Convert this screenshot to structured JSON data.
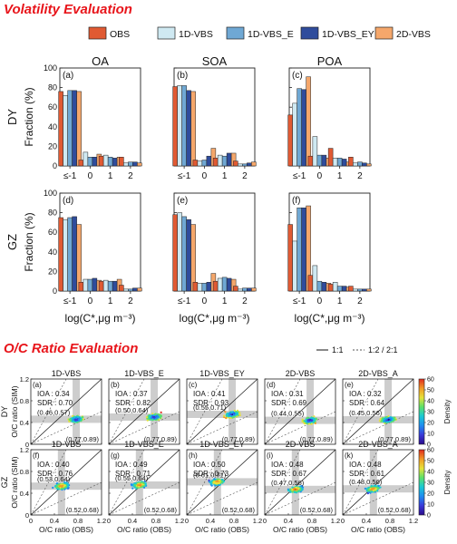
{
  "section1_title": "Volatility Evaluation",
  "section2_title": "O/C Ratio Evaluation",
  "colors": {
    "title_red": "#e8151b",
    "OBS": "#e05a33",
    "1D-VBS": "#cfe9f2",
    "1D-VBS_E": "#6fa8d4",
    "1D-VBS_EY": "#2f4c9c",
    "2D-VBS": "#f5a76b",
    "shade": "#c8c8c8"
  },
  "volatility_legend": [
    "OBS",
    "1D-VBS",
    "1D-VBS_E",
    "1D-VBS_EY",
    "2D-VBS"
  ],
  "volatility_axes": {
    "xlabel": "log(C*,μg m⁻³)",
    "ylabel": "Fraction (%)",
    "ylim": [
      0,
      100
    ],
    "yticks": [
      0,
      20,
      40,
      60,
      80,
      100
    ],
    "categories": [
      "≤-1",
      "0",
      "1",
      "2"
    ],
    "col_titles": [
      "OA",
      "SOA",
      "POA"
    ],
    "row_labels": [
      "DY",
      "GZ"
    ]
  },
  "chart_data": [
    {
      "type": "bar",
      "panel": "(a)",
      "title": "OA",
      "row": "DY",
      "categories": [
        "≤-1",
        "0",
        "1",
        "2"
      ],
      "ylim": [
        0,
        100
      ],
      "series": [
        {
          "name": "OBS",
          "values": [
            76,
            6,
            10,
            9
          ]
        },
        {
          "name": "1D-VBS",
          "values": [
            72,
            14,
            11,
            3
          ]
        },
        {
          "name": "1D-VBS_E",
          "values": [
            77,
            9,
            9,
            4
          ]
        },
        {
          "name": "1D-VBS_EY",
          "values": [
            77,
            9,
            8,
            4
          ]
        },
        {
          "name": "2D-VBS",
          "values": [
            76,
            12,
            9,
            3
          ]
        }
      ]
    },
    {
      "type": "bar",
      "panel": "(b)",
      "title": "SOA",
      "row": "DY",
      "categories": [
        "≤-1",
        "0",
        "1",
        "2"
      ],
      "ylim": [
        0,
        100
      ],
      "series": [
        {
          "name": "OBS",
          "values": [
            81,
            6,
            8,
            5
          ]
        },
        {
          "name": "1D-VBS",
          "values": [
            82,
            5,
            11,
            2
          ]
        },
        {
          "name": "1D-VBS_E",
          "values": [
            82,
            6,
            10,
            2
          ]
        },
        {
          "name": "1D-VBS_EY",
          "values": [
            77,
            10,
            13,
            3
          ]
        },
        {
          "name": "2D-VBS",
          "values": [
            76,
            18,
            13,
            4
          ]
        }
      ]
    },
    {
      "type": "bar",
      "panel": "(c)",
      "title": "POA",
      "row": "DY",
      "categories": [
        "≤-1",
        "0",
        "1",
        "2"
      ],
      "ylim": [
        0,
        100
      ],
      "series": [
        {
          "name": "OBS",
          "values": [
            52,
            10,
            18,
            9
          ]
        },
        {
          "name": "1D-VBS",
          "values": [
            64,
            30,
            8,
            3
          ]
        },
        {
          "name": "1D-VBS_E",
          "values": [
            79,
            11,
            8,
            4
          ]
        },
        {
          "name": "1D-VBS_EY",
          "values": [
            78,
            11,
            7,
            3
          ]
        },
        {
          "name": "2D-VBS",
          "values": [
            91,
            8,
            4,
            2
          ]
        }
      ]
    },
    {
      "type": "bar",
      "panel": "(d)",
      "title": "OA",
      "row": "GZ",
      "categories": [
        "≤-1",
        "0",
        "1",
        "2"
      ],
      "ylim": [
        0,
        100
      ],
      "series": [
        {
          "name": "OBS",
          "values": [
            75,
            9,
            10,
            6
          ]
        },
        {
          "name": "1D-VBS",
          "values": [
            73,
            12,
            11,
            2
          ]
        },
        {
          "name": "1D-VBS_E",
          "values": [
            75,
            12,
            10,
            2
          ]
        },
        {
          "name": "1D-VBS_EY",
          "values": [
            76,
            13,
            10,
            3
          ]
        },
        {
          "name": "2D-VBS",
          "values": [
            68,
            11,
            12,
            3
          ]
        }
      ]
    },
    {
      "type": "bar",
      "panel": "(e)",
      "title": "SOA",
      "row": "GZ",
      "categories": [
        "≤-1",
        "0",
        "1",
        "2"
      ],
      "ylim": [
        0,
        100
      ],
      "series": [
        {
          "name": "OBS",
          "values": [
            78,
            9,
            10,
            5
          ]
        },
        {
          "name": "1D-VBS",
          "values": [
            80,
            8,
            13,
            2
          ]
        },
        {
          "name": "1D-VBS_E",
          "values": [
            76,
            8,
            14,
            3
          ]
        },
        {
          "name": "1D-VBS_EY",
          "values": [
            73,
            9,
            13,
            3
          ]
        },
        {
          "name": "2D-VBS",
          "values": [
            68,
            18,
            12,
            3
          ]
        }
      ]
    },
    {
      "type": "bar",
      "panel": "(f)",
      "title": "POA",
      "row": "GZ",
      "categories": [
        "≤-1",
        "0",
        "1",
        "2"
      ],
      "ylim": [
        0,
        100
      ],
      "series": [
        {
          "name": "OBS",
          "values": [
            68,
            16,
            7,
            5
          ]
        },
        {
          "name": "1D-VBS",
          "values": [
            51,
            26,
            9,
            2
          ]
        },
        {
          "name": "1D-VBS_E",
          "values": [
            85,
            10,
            5,
            2
          ]
        },
        {
          "name": "1D-VBS_EY",
          "values": [
            85,
            9,
            5,
            2
          ]
        },
        {
          "name": "2D-VBS",
          "values": [
            87,
            8,
            4,
            2
          ]
        }
      ]
    },
    {
      "type": "scatter",
      "panel": "(a)",
      "title": "1D-VBS",
      "row": "DY",
      "IOA": "0.34",
      "SDR": "0.70",
      "obs_label": "(0.77,0.89)",
      "sim_label": "(0.46,0.57)",
      "obs_mean": 0.77,
      "sim_mean": 0.46
    },
    {
      "type": "scatter",
      "panel": "(b)",
      "title": "1D-VBS_E",
      "row": "DY",
      "IOA": "0.37",
      "SDR": "0.82",
      "obs_label": "(0.77,0.89)",
      "sim_label": "(0.50,0.64)",
      "obs_mean": 0.77,
      "sim_mean": 0.5
    },
    {
      "type": "scatter",
      "panel": "(c)",
      "title": "1D-VBS_EY",
      "row": "DY",
      "IOA": "0.41",
      "SDR": "0.93",
      "obs_label": "(0.77,0.89)",
      "sim_label": "(0.55,0.71)",
      "obs_mean": 0.77,
      "sim_mean": 0.55
    },
    {
      "type": "scatter",
      "panel": "(d)",
      "title": "2D-VBS",
      "row": "DY",
      "IOA": "0.31",
      "SDR": "0.69",
      "obs_label": "(0.77,0.89)",
      "sim_label": "(0.44,0.55)",
      "obs_mean": 0.77,
      "sim_mean": 0.44
    },
    {
      "type": "scatter",
      "panel": "(e)",
      "title": "2D-VBS_A",
      "row": "DY",
      "IOA": "0.32",
      "SDR": "0.64",
      "obs_label": "(0.77,0.89)",
      "sim_label": "(0.45,0.56)",
      "obs_mean": 0.77,
      "sim_mean": 0.45
    },
    {
      "type": "scatter",
      "panel": "(f)",
      "title": "1D-VBS",
      "row": "GZ",
      "IOA": "0.40",
      "SDR": "0.76",
      "obs_label": "(0.52,0.68)",
      "sim_label": "(0.53,0.64)",
      "obs_mean": 0.52,
      "sim_mean": 0.53
    },
    {
      "type": "scatter",
      "panel": "(g)",
      "title": "1D-VBS_E",
      "row": "GZ",
      "IOA": "0.49",
      "SDR": "0.71",
      "obs_label": "(0.52,0.68)",
      "sim_label": "(0.55,0.64)",
      "obs_mean": 0.52,
      "sim_mean": 0.55
    },
    {
      "type": "scatter",
      "panel": "(h)",
      "title": "1D-VBS_EY",
      "row": "GZ",
      "IOA": "0.50",
      "SDR": "0.73",
      "obs_label": "(0.52,0.68)",
      "sim_label": "(0.61,0.71)",
      "obs_mean": 0.52,
      "sim_mean": 0.61
    },
    {
      "type": "scatter",
      "panel": "(i)",
      "title": "2D-VBS",
      "row": "GZ",
      "IOA": "0.48",
      "SDR": "0.67",
      "obs_label": "(0.52,0.68)",
      "sim_label": "(0.47,0.56)",
      "obs_mean": 0.52,
      "sim_mean": 0.47
    },
    {
      "type": "scatter",
      "panel": "(k)",
      "title": "2D-VBS_A",
      "row": "GZ",
      "IOA": "0.48",
      "SDR": "0.61",
      "obs_label": "(0.52,0.68)",
      "sim_label": "(0.48,0.56)",
      "obs_mean": 0.52,
      "sim_mean": 0.48
    }
  ],
  "scatter_axes": {
    "xlabel": "O/C ratio (OBS)",
    "ylabel": "O/C ratio (SIM)",
    "xlim": [
      0,
      1.2
    ],
    "ylim": [
      0,
      1.2
    ],
    "ticks": [
      "0",
      "0.4",
      "0.8",
      "1.2"
    ],
    "row_labels": [
      "DY",
      "GZ"
    ],
    "ref_legend": [
      "1:1",
      "1:2 / 2:1"
    ],
    "colorbar_label": "Density",
    "colorbar_ticks": [
      "0",
      "10",
      "20",
      "30",
      "40",
      "50",
      "60"
    ]
  }
}
